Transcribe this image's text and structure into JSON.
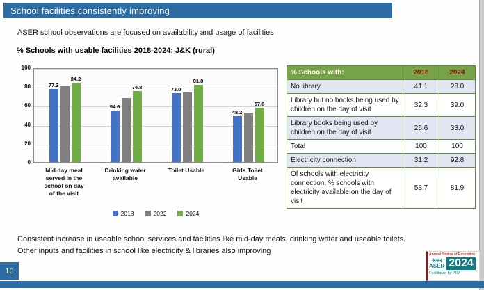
{
  "header": {
    "title": "School facilities consistently improving"
  },
  "intro": "ASER school observations are focused on availability and usage of facilities",
  "chart": {
    "title": "% Schools with usable facilities 2018-2024: J&K (rural)",
    "chart_data": {
      "type": "bar",
      "categories": [
        "Mid day meal\nserved in the\nschool on day\nof the visit",
        "Drinking water\navailable",
        "Toilet Usable",
        "Girls Toilet\nUsable"
      ],
      "series": [
        {
          "name": "2018",
          "color": "#4472C4",
          "values": [
            77.3,
            54.6,
            73.0,
            48.2
          ],
          "value_labels": [
            "77.3",
            "54.6",
            "73.0",
            "48.2"
          ]
        },
        {
          "name": "2022",
          "color": "#808080",
          "values": [
            80.0,
            68.0,
            73.5,
            52.0
          ],
          "value_labels": null
        },
        {
          "name": "2024",
          "color": "#70AD47",
          "values": [
            84.2,
            74.8,
            81.8,
            57.6
          ],
          "value_labels": [
            "84.2",
            "74.8",
            "81.8",
            "57.6"
          ]
        }
      ],
      "ylim": [
        0,
        100
      ],
      "yticks": [
        0,
        20,
        40,
        60,
        80,
        100
      ],
      "grid": true,
      "legend_position": "bottom"
    }
  },
  "table": {
    "headers": {
      "label": "% Schools with:",
      "y2018": "2018",
      "y2024": "2024"
    },
    "rows": [
      {
        "label": "No library",
        "y2018": "41.1",
        "y2024": "28.0"
      },
      {
        "label": "Library but no books being used by children on the day of visit",
        "y2018": "32.3",
        "y2024": "39.0"
      },
      {
        "label": "Library books being used by children on the day of visit",
        "y2018": "26.6",
        "y2024": "33.0"
      },
      {
        "label": "Total",
        "y2018": "100",
        "y2024": "100"
      },
      {
        "label": "Electricity connection",
        "y2018": "31.2",
        "y2024": "92.8"
      },
      {
        "label": "Of schools with electricity connection, % schools with electricity available on the day of visit",
        "y2018": "58.7",
        "y2024": "81.9"
      }
    ]
  },
  "notes": [
    "Consistent increase in useable school services and facilities like mid-day meals, drinking water and useable toilets.",
    "Other inputs and facilities in school like electricity & libraries also improving"
  ],
  "page_number": "10",
  "logo": {
    "top_text": "Annual Status of Education",
    "hindi": "असर",
    "latin": "ASER",
    "year": "2024",
    "bottom_text": "Facilitated by PRA"
  },
  "colors": {
    "accent_blue": "#2E6DA4",
    "bar_2018": "#4472C4",
    "bar_2022": "#808080",
    "bar_2024": "#70AD47",
    "table_header_green": "#76A348",
    "table_year_text": "#8B1D12",
    "table_row_alt": "#E1E6F2",
    "logo_teal": "#0E7C82",
    "logo_red": "#C00000"
  }
}
